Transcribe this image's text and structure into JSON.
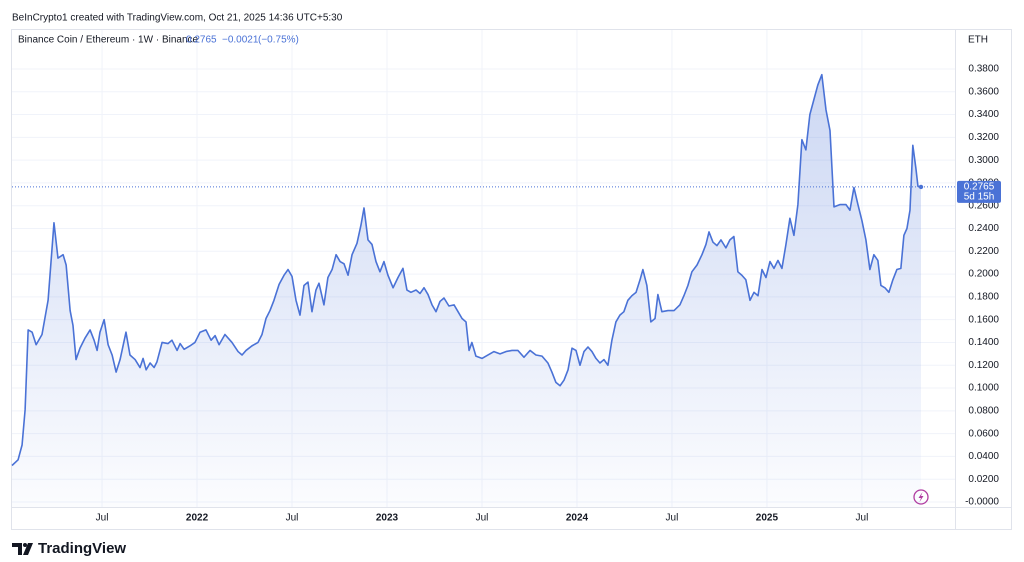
{
  "header": {
    "caption": "BeInCrypto1 created with TradingView.com, Oct 21, 2025 14:36 UTC+5:30"
  },
  "chart_data": {
    "type": "area",
    "title": "Binance Coin / Ethereum · 1W · Binance",
    "last_price": 0.2765,
    "change": "−0.0021",
    "change_pct": "(−0.75%)",
    "currency": "ETH",
    "countdown": "5d 15h",
    "color": "#4a72d6",
    "grid": true,
    "x": [
      2021.026,
      2021.058,
      2021.079,
      2021.095,
      2021.111,
      2021.132,
      2021.153,
      2021.184,
      2021.216,
      2021.247,
      2021.268,
      2021.295,
      2021.311,
      2021.332,
      2021.347,
      2021.363,
      2021.384,
      2021.411,
      2021.437,
      2021.458,
      2021.474,
      2021.489,
      2021.511,
      2021.532,
      2021.553,
      2021.574,
      2021.595,
      2021.626,
      2021.647,
      2021.674,
      2021.7,
      2021.716,
      2021.732,
      2021.753,
      2021.774,
      2021.789,
      2021.816,
      2021.847,
      2021.868,
      2021.895,
      2021.911,
      2021.932,
      2021.963,
      2021.989,
      2022.016,
      2022.047,
      2022.074,
      2022.095,
      2022.116,
      2022.147,
      2022.184,
      2022.216,
      2022.237,
      2022.258,
      2022.289,
      2022.321,
      2022.342,
      2022.363,
      2022.384,
      2022.405,
      2022.432,
      2022.458,
      2022.479,
      2022.5,
      2022.521,
      2022.542,
      2022.563,
      2022.584,
      2022.605,
      2022.626,
      2022.642,
      2022.668,
      2022.689,
      2022.711,
      2022.732,
      2022.753,
      2022.774,
      2022.795,
      2022.816,
      2022.842,
      2022.863,
      2022.879,
      2022.9,
      2022.921,
      2022.942,
      2022.963,
      2022.984,
      2023.005,
      2023.032,
      2023.058,
      2023.084,
      2023.105,
      2023.126,
      2023.153,
      2023.174,
      2023.195,
      2023.216,
      2023.237,
      2023.258,
      2023.279,
      2023.3,
      2023.326,
      2023.353,
      2023.374,
      2023.395,
      2023.416,
      2023.432,
      2023.447,
      2023.468,
      2023.5,
      2023.532,
      2023.563,
      2023.595,
      2023.626,
      2023.658,
      2023.689,
      2023.721,
      2023.753,
      2023.784,
      2023.816,
      2023.847,
      2023.868,
      2023.889,
      2023.911,
      2023.932,
      2023.953,
      2023.974,
      2023.995,
      2024.016,
      2024.037,
      2024.058,
      2024.079,
      2024.1,
      2024.121,
      2024.142,
      2024.163,
      2024.184,
      2024.205,
      2024.226,
      2024.247,
      2024.268,
      2024.289,
      2024.311,
      2024.332,
      2024.347,
      2024.368,
      2024.389,
      2024.411,
      2024.426,
      2024.447,
      2024.479,
      2024.511,
      2024.542,
      2024.563,
      2024.584,
      2024.605,
      2024.632,
      2024.658,
      2024.679,
      2024.695,
      2024.716,
      2024.737,
      2024.758,
      2024.784,
      2024.805,
      2024.826,
      2024.847,
      2024.868,
      2024.889,
      2024.911,
      2024.932,
      2024.953,
      2024.974,
      2024.995,
      2025.016,
      2025.037,
      2025.058,
      2025.079,
      2025.1,
      2025.121,
      2025.142,
      2025.163,
      2025.184,
      2025.205,
      2025.226,
      2025.247,
      2025.268,
      2025.289,
      2025.311,
      2025.332,
      2025.353,
      2025.384,
      2025.416,
      2025.437,
      2025.458,
      2025.479,
      2025.5,
      2025.521,
      2025.542,
      2025.563,
      2025.584,
      2025.6,
      2025.621,
      2025.642,
      2025.663,
      2025.684,
      2025.705,
      2025.721,
      2025.737,
      2025.753,
      2025.768,
      2025.784,
      2025.795,
      2025.811
    ],
    "values": [
      0.032,
      0.037,
      0.05,
      0.081,
      0.151,
      0.149,
      0.138,
      0.147,
      0.177,
      0.245,
      0.214,
      0.217,
      0.208,
      0.168,
      0.155,
      0.125,
      0.135,
      0.144,
      0.151,
      0.142,
      0.133,
      0.149,
      0.16,
      0.138,
      0.129,
      0.114,
      0.125,
      0.149,
      0.129,
      0.125,
      0.118,
      0.126,
      0.116,
      0.122,
      0.118,
      0.123,
      0.14,
      0.139,
      0.142,
      0.133,
      0.139,
      0.134,
      0.137,
      0.14,
      0.149,
      0.151,
      0.142,
      0.146,
      0.138,
      0.147,
      0.14,
      0.132,
      0.129,
      0.133,
      0.137,
      0.14,
      0.147,
      0.161,
      0.168,
      0.177,
      0.191,
      0.199,
      0.204,
      0.198,
      0.177,
      0.164,
      0.19,
      0.193,
      0.167,
      0.186,
      0.192,
      0.173,
      0.197,
      0.204,
      0.217,
      0.211,
      0.209,
      0.199,
      0.217,
      0.227,
      0.243,
      0.258,
      0.23,
      0.226,
      0.211,
      0.202,
      0.211,
      0.199,
      0.188,
      0.197,
      0.205,
      0.186,
      0.184,
      0.186,
      0.183,
      0.188,
      0.182,
      0.173,
      0.167,
      0.176,
      0.179,
      0.172,
      0.173,
      0.167,
      0.161,
      0.158,
      0.133,
      0.14,
      0.128,
      0.126,
      0.129,
      0.132,
      0.13,
      0.132,
      0.133,
      0.133,
      0.127,
      0.133,
      0.129,
      0.128,
      0.122,
      0.114,
      0.105,
      0.102,
      0.107,
      0.116,
      0.135,
      0.133,
      0.12,
      0.132,
      0.136,
      0.132,
      0.126,
      0.122,
      0.125,
      0.12,
      0.142,
      0.158,
      0.164,
      0.167,
      0.177,
      0.181,
      0.184,
      0.195,
      0.204,
      0.19,
      0.158,
      0.161,
      0.182,
      0.167,
      0.168,
      0.168,
      0.173,
      0.181,
      0.19,
      0.202,
      0.208,
      0.217,
      0.226,
      0.237,
      0.228,
      0.225,
      0.23,
      0.223,
      0.23,
      0.233,
      0.202,
      0.199,
      0.195,
      0.177,
      0.184,
      0.181,
      0.204,
      0.197,
      0.211,
      0.205,
      0.212,
      0.205,
      0.226,
      0.249,
      0.234,
      0.261,
      0.318,
      0.309,
      0.34,
      0.353,
      0.366,
      0.375,
      0.344,
      0.326,
      0.259,
      0.261,
      0.261,
      0.256,
      0.276,
      0.261,
      0.247,
      0.23,
      0.204,
      0.217,
      0.212,
      0.19,
      0.188,
      0.184,
      0.195,
      0.204,
      0.205,
      0.234,
      0.24,
      0.256,
      0.313,
      0.293,
      0.277,
      0.2765
    ],
    "xlim": [
      2021.026,
      2025.99
    ],
    "xticks": [
      {
        "value": 2021.5,
        "label": "Jul"
      },
      2022,
      {
        "value": 2022.5,
        "label": "Jul"
      },
      2023,
      {
        "value": 2023.5,
        "label": "Jul"
      },
      2024,
      {
        "value": 2024.5,
        "label": "Jul"
      },
      2025,
      {
        "value": 2025.5,
        "label": "Jul"
      }
    ],
    "ylim": [
      -0.0044,
      0.4142
    ],
    "yticks": [
      {
        "value": 0,
        "label": "-0.0000"
      },
      {
        "value": 0.02,
        "label": "0.0200"
      },
      {
        "value": 0.04,
        "label": "0.0400"
      },
      {
        "value": 0.06,
        "label": "0.0600"
      },
      {
        "value": 0.08,
        "label": "0.0800"
      },
      {
        "value": 0.1,
        "label": "0.1000"
      },
      {
        "value": 0.12,
        "label": "0.1200"
      },
      {
        "value": 0.14,
        "label": "0.1400"
      },
      {
        "value": 0.16,
        "label": "0.1600"
      },
      {
        "value": 0.18,
        "label": "0.1800"
      },
      {
        "value": 0.2,
        "label": "0.2000"
      },
      {
        "value": 0.22,
        "label": "0.2200"
      },
      {
        "value": 0.24,
        "label": "0.2400"
      },
      {
        "value": 0.26,
        "label": "0.2600"
      },
      {
        "value": 0.28,
        "label": "0.2800"
      },
      {
        "value": 0.3,
        "label": "0.3000"
      },
      {
        "value": 0.32,
        "label": "0.3200"
      },
      {
        "value": 0.34,
        "label": "0.3400"
      },
      {
        "value": 0.36,
        "label": "0.3600"
      },
      {
        "value": 0.38,
        "label": "0.3800"
      }
    ]
  },
  "footer": {
    "brand": "TradingView"
  }
}
